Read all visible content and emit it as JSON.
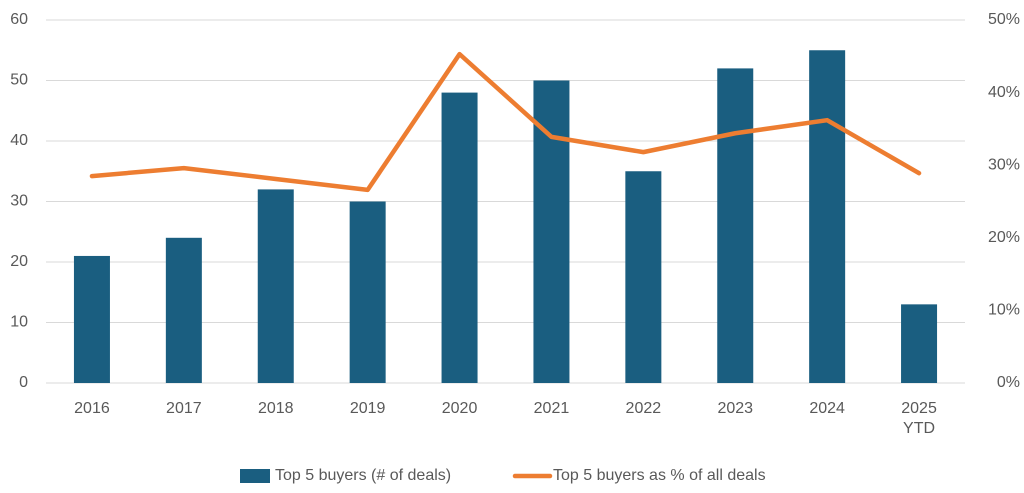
{
  "chart_data": {
    "type": "bar",
    "categories": [
      "2016",
      "2017",
      "2018",
      "2019",
      "2020",
      "2021",
      "2022",
      "2023",
      "2024",
      "2025\nYTD"
    ],
    "series": [
      {
        "name": "Top 5 buyers (# of deals)",
        "type": "bar",
        "color": "#1a5e80",
        "values": [
          21,
          24,
          32,
          30,
          48,
          50,
          35,
          52,
          55,
          13
        ]
      },
      {
        "name": "Top 5 buyers as % of all deals",
        "type": "line",
        "axis": "y2",
        "color": "#ed7d31",
        "values": [
          28.5,
          29.6,
          28.1,
          26.6,
          45.3,
          33.9,
          31.8,
          34.4,
          36.2,
          28.9
        ]
      }
    ],
    "ylim": [
      0,
      60
    ],
    "yticks": [
      0,
      10,
      20,
      30,
      40,
      50,
      60
    ],
    "y2lim": [
      0,
      50
    ],
    "y2ticks": [
      {
        "value": 0,
        "label": "0%"
      },
      {
        "value": 10,
        "label": "10%"
      },
      {
        "value": 20,
        "label": "20%"
      },
      {
        "value": 30,
        "label": "30%"
      },
      {
        "value": 40,
        "label": "40%"
      },
      {
        "value": 50,
        "label": "50%"
      }
    ],
    "grid": true
  }
}
